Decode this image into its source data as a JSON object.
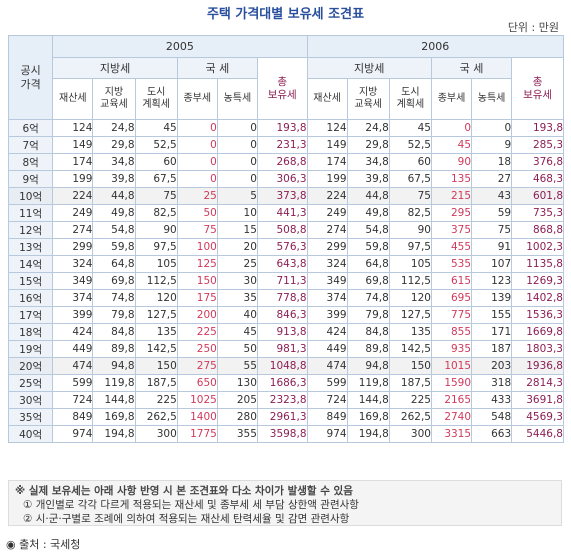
{
  "title": "주택 가격대별 보유세 조견표",
  "unit": "단위 : 만원",
  "header": {
    "corner": "공시\n가격",
    "years": [
      "2005",
      "2006"
    ],
    "groups": [
      "지방세",
      "국  세",
      "지방세",
      "국  세"
    ],
    "total": "총\n보유세",
    "cols": [
      "재산세",
      "지방\n교육세",
      "도시\n계획세",
      "종부세",
      "농특세"
    ]
  },
  "table": {
    "rows": [
      {
        "price": "6억",
        "v": [
          "124",
          "24,8",
          "45",
          "0",
          "0",
          "193,8",
          "124",
          "24,8",
          "45",
          "0",
          "0",
          "193,8"
        ]
      },
      {
        "price": "7억",
        "v": [
          "149",
          "29,8",
          "52,5",
          "0",
          "0",
          "231,3",
          "149",
          "29,8",
          "52,5",
          "45",
          "9",
          "285,3"
        ]
      },
      {
        "price": "8억",
        "v": [
          "174",
          "34,8",
          "60",
          "0",
          "0",
          "268,8",
          "174",
          "34,8",
          "60",
          "90",
          "18",
          "376,8"
        ]
      },
      {
        "price": "9억",
        "v": [
          "199",
          "39,8",
          "67,5",
          "0",
          "0",
          "306,3",
          "199",
          "39,8",
          "67,5",
          "135",
          "27",
          "468,3"
        ]
      },
      {
        "price": "10억",
        "v": [
          "224",
          "44,8",
          "75",
          "25",
          "5",
          "373,8",
          "224",
          "44,8",
          "75",
          "215",
          "43",
          "601,8"
        ]
      },
      {
        "price": "11억",
        "v": [
          "249",
          "49,8",
          "82,5",
          "50",
          "10",
          "441,3",
          "249",
          "49,8",
          "82,5",
          "295",
          "59",
          "735,3"
        ]
      },
      {
        "price": "12억",
        "v": [
          "274",
          "54,8",
          "90",
          "75",
          "15",
          "508,8",
          "274",
          "54,8",
          "90",
          "375",
          "75",
          "868,8"
        ]
      },
      {
        "price": "13억",
        "v": [
          "299",
          "59,8",
          "97,5",
          "100",
          "20",
          "576,3",
          "299",
          "59,8",
          "97,5",
          "455",
          "91",
          "1002,3"
        ]
      },
      {
        "price": "14억",
        "v": [
          "324",
          "64,8",
          "105",
          "125",
          "25",
          "643,8",
          "324",
          "64,8",
          "105",
          "535",
          "107",
          "1135,8"
        ]
      },
      {
        "price": "15억",
        "v": [
          "349",
          "69,8",
          "112,5",
          "150",
          "30",
          "711,3",
          "349",
          "69,8",
          "112,5",
          "615",
          "123",
          "1269,3"
        ]
      },
      {
        "price": "16억",
        "v": [
          "374",
          "74,8",
          "120",
          "175",
          "35",
          "778,8",
          "374",
          "74,8",
          "120",
          "695",
          "139",
          "1402,8"
        ]
      },
      {
        "price": "17억",
        "v": [
          "399",
          "79,8",
          "127,5",
          "200",
          "40",
          "846,3",
          "399",
          "79,8",
          "127,5",
          "775",
          "155",
          "1536,3"
        ]
      },
      {
        "price": "18억",
        "v": [
          "424",
          "84,8",
          "135",
          "225",
          "45",
          "913,8",
          "424",
          "84,8",
          "135",
          "855",
          "171",
          "1669,8"
        ]
      },
      {
        "price": "19억",
        "v": [
          "449",
          "89,8",
          "142,5",
          "250",
          "50",
          "981,3",
          "449",
          "89,8",
          "142,5",
          "935",
          "187",
          "1803,3"
        ]
      },
      {
        "price": "20억",
        "v": [
          "474",
          "94,8",
          "150",
          "275",
          "55",
          "1048,8",
          "474",
          "94,8",
          "150",
          "1015",
          "203",
          "1936,8"
        ]
      },
      {
        "price": "25억",
        "v": [
          "599",
          "119,8",
          "187,5",
          "650",
          "130",
          "1686,3",
          "599",
          "119,8",
          "187,5",
          "1590",
          "318",
          "2814,3"
        ]
      },
      {
        "price": "30억",
        "v": [
          "724",
          "144,8",
          "225",
          "1025",
          "205",
          "2323,8",
          "724",
          "144,8",
          "225",
          "2165",
          "433",
          "3691,8"
        ]
      },
      {
        "price": "35억",
        "v": [
          "849",
          "169,8",
          "262,5",
          "1400",
          "280",
          "2961,3",
          "849",
          "169,8",
          "262,5",
          "2740",
          "548",
          "4569,3"
        ]
      },
      {
        "price": "40억",
        "v": [
          "974",
          "194,8",
          "300",
          "1775",
          "355",
          "3598,8",
          "974",
          "194,8",
          "300",
          "3315",
          "663",
          "5446,8"
        ]
      }
    ]
  },
  "notes": {
    "main": "※ 실제 보유세는 아래 사항 반영 시 본 조견표와 다소 차이가 발생할 수 있음",
    "items": [
      "① 개인별로 각각 다르게 적용되는 재산세 및 종부세 세 부담 상한액 관련사항",
      "② 시·군·구별로 조례에 의하여 적용되는 재산세 탄력세율 및 감면 관련사항"
    ]
  },
  "source": "◉ 출처 : 국세청"
}
